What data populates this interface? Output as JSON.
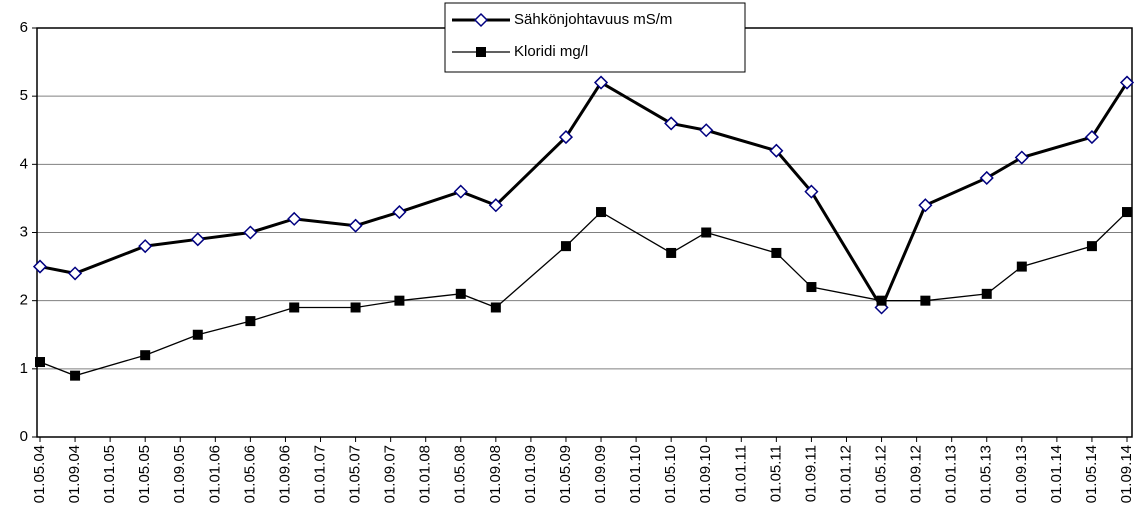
{
  "chart_data": {
    "type": "line",
    "x": [
      "01.05.04",
      "01.09.04",
      "01.05.05",
      "01.11.05",
      "01.05.06",
      "01.10.06",
      "01.05.07",
      "01.10.07",
      "01.05.08",
      "01.09.08",
      "01.05.09",
      "01.09.09",
      "01.05.10",
      "01.09.10",
      "01.05.11",
      "01.09.11",
      "01.05.12",
      "01.10.12",
      "01.05.13",
      "01.09.13",
      "01.05.14",
      "01.09.14"
    ],
    "series": [
      {
        "name": "Sähkönjohtavuus mS/m",
        "color": "#000000",
        "marker": "diamond",
        "marker_color": "#000080",
        "values": [
          2.5,
          2.4,
          2.8,
          2.9,
          3.0,
          3.2,
          3.1,
          3.3,
          3.6,
          3.4,
          4.4,
          5.2,
          4.6,
          4.5,
          4.2,
          3.6,
          1.9,
          3.4,
          3.8,
          4.1,
          4.4,
          5.2
        ]
      },
      {
        "name": "Kloridi mg/l",
        "color": "#000000",
        "marker": "square",
        "marker_color": "#000000",
        "values": [
          1.1,
          0.9,
          1.2,
          1.5,
          1.7,
          1.9,
          1.9,
          2.0,
          2.1,
          1.9,
          2.8,
          3.3,
          2.7,
          3.0,
          2.7,
          2.2,
          2.0,
          2.0,
          2.1,
          2.5,
          2.8,
          3.3
        ]
      }
    ],
    "xticks": [
      "01.05.04",
      "01.09.04",
      "01.01.05",
      "01.05.05",
      "01.09.05",
      "01.01.06",
      "01.05.06",
      "01.09.06",
      "01.01.07",
      "01.05.07",
      "01.09.07",
      "01.01.08",
      "01.05.08",
      "01.09.08",
      "01.01.09",
      "01.05.09",
      "01.09.09",
      "01.01.10",
      "01.05.10",
      "01.09.10",
      "01.01.11",
      "01.05.11",
      "01.09.11",
      "01.01.12",
      "01.05.12",
      "01.09.12",
      "01.01.13",
      "01.05.13",
      "01.09.13",
      "01.01.14",
      "01.05.14",
      "01.09.14"
    ],
    "ylim": [
      0,
      6
    ],
    "yticks": [
      0,
      1,
      2,
      3,
      4,
      5,
      6
    ],
    "grid": true
  }
}
